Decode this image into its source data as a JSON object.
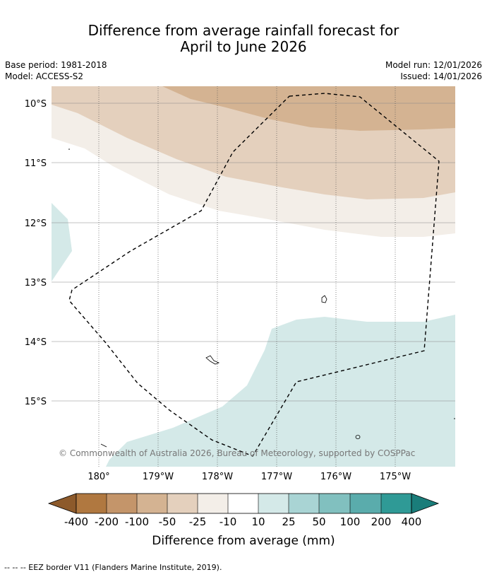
{
  "title": {
    "line1": "Difference from average rainfall forecast for",
    "line2": "April to June 2026"
  },
  "meta": {
    "base_period": "Base period: 1981-2018",
    "model": "Model: ACCESS-S2",
    "model_run": "Model run: 12/01/2026",
    "issued": "Issued: 14/01/2026"
  },
  "map": {
    "lat_labels": [
      "10°S",
      "11°S",
      "12°S",
      "13°S",
      "14°S",
      "15°S"
    ],
    "lon_labels": [
      "180°",
      "179°W",
      "178°W",
      "177°W",
      "176°W",
      "175°W"
    ],
    "copyright": "© Commonwealth of Australia 2026, Bureau of Meteorology, supported by COSPPac"
  },
  "colorbar": {
    "ticks": [
      "-400",
      "-200",
      "-100",
      "-50",
      "-25",
      "-10",
      "10",
      "25",
      "50",
      "100",
      "200",
      "400"
    ],
    "colors": [
      "#8d5a2b",
      "#b07840",
      "#c4956a",
      "#d4b392",
      "#e4d0bd",
      "#f3eee8",
      "#ffffff",
      "#d4e9e8",
      "#a9d4d4",
      "#81c0bf",
      "#5aacac",
      "#2f9a96",
      "#1a7d7a"
    ],
    "label": "Difference from average (mm)"
  },
  "footer": {
    "legend": "--  --  -- EEZ border V11 (Flanders Marine Institute, 2019)."
  }
}
